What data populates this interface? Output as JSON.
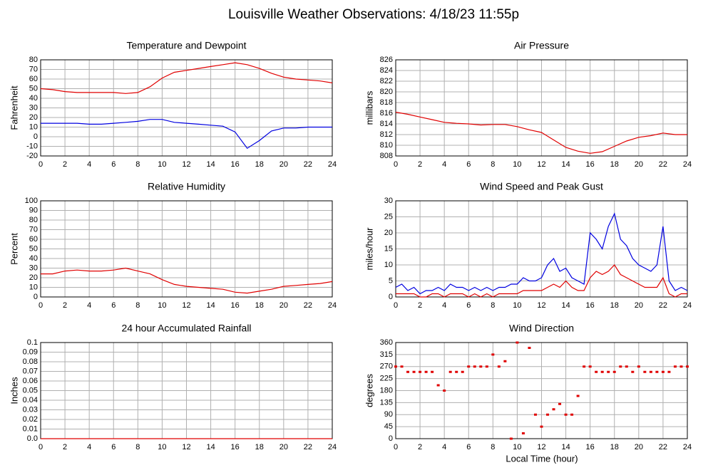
{
  "title": "Louisville Weather Observations: 4/18/23 11:55p",
  "xlabel": "Local Time (hour)",
  "chart_data": [
    {
      "type": "line",
      "title": "Temperature and Dewpoint",
      "ylabel": "Fahrenheit",
      "grid": true,
      "x": [
        0,
        1,
        2,
        3,
        4,
        5,
        6,
        7,
        8,
        9,
        10,
        11,
        12,
        13,
        14,
        15,
        16,
        17,
        18,
        19,
        20,
        21,
        22,
        23,
        24
      ],
      "xlim": [
        0,
        24
      ],
      "xticks": [
        0,
        2,
        4,
        6,
        8,
        10,
        12,
        14,
        16,
        18,
        20,
        22,
        24
      ],
      "ylim": [
        -20,
        80
      ],
      "yticks": [
        -20,
        -10,
        0,
        10,
        20,
        30,
        40,
        50,
        60,
        70,
        80
      ],
      "series": [
        {
          "name": "Temperature",
          "color": "#e00000",
          "values": [
            50,
            49,
            47,
            46,
            46,
            46,
            46,
            45,
            46,
            52,
            61,
            67,
            69,
            71,
            73,
            75,
            77,
            75,
            71,
            66,
            62,
            60,
            59,
            58,
            56
          ]
        },
        {
          "name": "Dewpoint",
          "color": "#0000e0",
          "values": [
            14,
            14,
            14,
            14,
            13,
            13,
            14,
            15,
            16,
            18,
            18,
            15,
            14,
            13,
            12,
            11,
            5,
            -12,
            -4,
            6,
            9,
            9,
            10,
            10,
            10
          ]
        }
      ]
    },
    {
      "type": "line",
      "title": "Air Pressure",
      "ylabel": "millibars",
      "grid": true,
      "x": [
        0,
        1,
        2,
        3,
        4,
        5,
        6,
        7,
        8,
        9,
        10,
        11,
        12,
        13,
        14,
        15,
        16,
        17,
        18,
        19,
        20,
        21,
        22,
        23,
        24
      ],
      "xlim": [
        0,
        24
      ],
      "xticks": [
        0,
        2,
        4,
        6,
        8,
        10,
        12,
        14,
        16,
        18,
        20,
        22,
        24
      ],
      "ylim": [
        808,
        826
      ],
      "yticks": [
        808,
        810,
        812,
        814,
        816,
        818,
        820,
        822,
        824,
        826
      ],
      "series": [
        {
          "name": "Pressure",
          "color": "#e00000",
          "values": [
            816.2,
            815.8,
            815.3,
            814.8,
            814.3,
            814.1,
            814.0,
            813.8,
            813.9,
            813.9,
            813.5,
            812.9,
            812.4,
            811.0,
            809.6,
            808.9,
            808.5,
            808.8,
            809.8,
            810.8,
            811.5,
            811.8,
            812.3,
            812.0,
            812.0
          ]
        }
      ]
    },
    {
      "type": "line",
      "title": "Relative Humidity",
      "ylabel": "Percent",
      "grid": true,
      "x": [
        0,
        1,
        2,
        3,
        4,
        5,
        6,
        7,
        8,
        9,
        10,
        11,
        12,
        13,
        14,
        15,
        16,
        17,
        18,
        19,
        20,
        21,
        22,
        23,
        24
      ],
      "xlim": [
        0,
        24
      ],
      "xticks": [
        0,
        2,
        4,
        6,
        8,
        10,
        12,
        14,
        16,
        18,
        20,
        22,
        24
      ],
      "ylim": [
        0,
        100
      ],
      "yticks": [
        0,
        10,
        20,
        30,
        40,
        50,
        60,
        70,
        80,
        90,
        100
      ],
      "series": [
        {
          "name": "Humidity",
          "color": "#e00000",
          "values": [
            24,
            24,
            27,
            28,
            27,
            27,
            28,
            30,
            27,
            24,
            18,
            13,
            11,
            10,
            9,
            8,
            5,
            4,
            6,
            8,
            11,
            12,
            13,
            14,
            16
          ]
        }
      ]
    },
    {
      "type": "line",
      "title": "Wind Speed and Peak Gust",
      "ylabel": "miles/hour",
      "grid": true,
      "x": [
        0,
        0.5,
        1,
        1.5,
        2,
        2.5,
        3,
        3.5,
        4,
        4.5,
        5,
        5.5,
        6,
        6.5,
        7,
        7.5,
        8,
        8.5,
        9,
        9.5,
        10,
        10.5,
        11,
        11.5,
        12,
        12.5,
        13,
        13.5,
        14,
        14.5,
        15,
        15.5,
        16,
        16.5,
        17,
        17.5,
        18,
        18.5,
        19,
        19.5,
        20,
        20.5,
        21,
        21.5,
        22,
        22.5,
        23,
        23.5,
        24
      ],
      "xlim": [
        0,
        24
      ],
      "xticks": [
        0,
        2,
        4,
        6,
        8,
        10,
        12,
        14,
        16,
        18,
        20,
        22,
        24
      ],
      "ylim": [
        0,
        30
      ],
      "yticks": [
        0,
        5,
        10,
        15,
        20,
        25,
        30
      ],
      "series": [
        {
          "name": "Peak Gust",
          "color": "#0000e0",
          "values": [
            3,
            4,
            2,
            3,
            1,
            2,
            2,
            3,
            2,
            4,
            3,
            3,
            2,
            3,
            2,
            3,
            2,
            3,
            3,
            4,
            4,
            6,
            5,
            5,
            6,
            10,
            12,
            8,
            9,
            6,
            5,
            4,
            20,
            18,
            15,
            22,
            26,
            18,
            16,
            12,
            10,
            9,
            8,
            10,
            22,
            5,
            2,
            3,
            2
          ]
        },
        {
          "name": "Wind Speed",
          "color": "#e00000",
          "values": [
            1,
            1,
            1,
            1,
            0,
            0,
            1,
            1,
            0,
            1,
            1,
            1,
            0,
            1,
            0,
            1,
            0,
            1,
            1,
            1,
            1,
            2,
            2,
            2,
            2,
            3,
            4,
            3,
            5,
            3,
            2,
            2,
            6,
            8,
            7,
            8,
            10,
            7,
            6,
            5,
            4,
            3,
            3,
            3,
            6,
            1,
            0,
            1,
            1
          ]
        }
      ]
    },
    {
      "type": "line",
      "title": "24 hour Accumulated Rainfall",
      "ylabel": "Inches",
      "grid": true,
      "x": [
        0,
        1,
        2,
        3,
        4,
        5,
        6,
        7,
        8,
        9,
        10,
        11,
        12,
        13,
        14,
        15,
        16,
        17,
        18,
        19,
        20,
        21,
        22,
        23,
        24
      ],
      "xlim": [
        0,
        24
      ],
      "xticks": [
        0,
        2,
        4,
        6,
        8,
        10,
        12,
        14,
        16,
        18,
        20,
        22,
        24
      ],
      "ylim": [
        0,
        0.1
      ],
      "yticks": [
        {
          "value": 0,
          "label": "0.0"
        },
        0.01,
        0.02,
        0.03,
        0.04,
        0.05,
        0.06,
        0.07,
        0.08,
        0.09,
        0.1
      ],
      "series": [
        {
          "name": "Rainfall",
          "color": "#e00000",
          "values": [
            0,
            0,
            0,
            0,
            0,
            0,
            0,
            0,
            0,
            0,
            0,
            0,
            0,
            0,
            0,
            0,
            0,
            0,
            0,
            0,
            0,
            0,
            0,
            0,
            0
          ]
        }
      ]
    },
    {
      "type": "scatter",
      "title": "Wind Direction",
      "ylabel": "degrees",
      "grid": true,
      "x": [
        0,
        0.5,
        1,
        1.5,
        2,
        2.5,
        3,
        3.5,
        4,
        4.5,
        5,
        5.5,
        6,
        6.5,
        7,
        7.5,
        8,
        8.5,
        9,
        9.5,
        10,
        10.5,
        11,
        11.5,
        12,
        12.5,
        13,
        13.5,
        14,
        14.5,
        15,
        15.5,
        16,
        16.5,
        17,
        17.5,
        18,
        18.5,
        19,
        19.5,
        20,
        20.5,
        21,
        21.5,
        22,
        22.5,
        23,
        23.5,
        24
      ],
      "xlim": [
        0,
        24
      ],
      "xticks": [
        0,
        2,
        4,
        6,
        8,
        10,
        12,
        14,
        16,
        18,
        20,
        22,
        24
      ],
      "ylim": [
        0,
        360
      ],
      "yticks": [
        0,
        45,
        90,
        135,
        180,
        225,
        270,
        315,
        360
      ],
      "series": [
        {
          "name": "Direction",
          "color": "#e00000",
          "values": [
            270,
            270,
            250,
            250,
            250,
            250,
            250,
            200,
            180,
            250,
            250,
            250,
            270,
            270,
            270,
            270,
            315,
            270,
            290,
            0,
            360,
            20,
            340,
            90,
            45,
            90,
            110,
            130,
            90,
            90,
            160,
            270,
            270,
            250,
            250,
            250,
            250,
            270,
            270,
            250,
            270,
            250,
            250,
            250,
            250,
            250,
            270,
            270,
            270
          ]
        }
      ]
    }
  ]
}
